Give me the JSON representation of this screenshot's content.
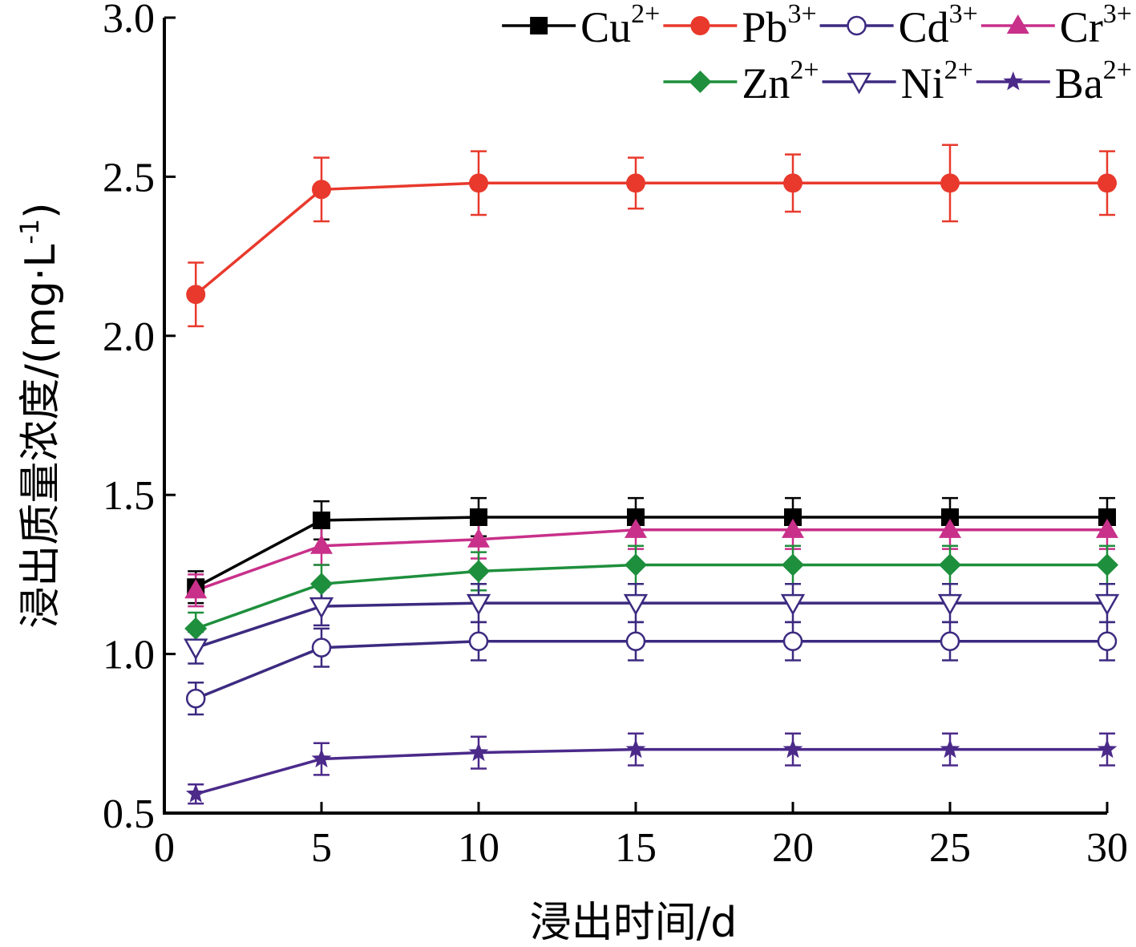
{
  "chart_data": {
    "type": "line",
    "title": "",
    "xlabel": "浸出时间/d",
    "ylabel": "浸出质量浓度/(mg·L-1)",
    "xlim": [
      0,
      30
    ],
    "ylim": [
      0.5,
      3.0
    ],
    "xticks": [
      "0",
      "5",
      "10",
      "15",
      "20",
      "25",
      "30"
    ],
    "yticks": [
      "0.5",
      "1.0",
      "1.5",
      "2.0",
      "2.5",
      "3.0"
    ],
    "grid": false,
    "legend_position": "top-right",
    "x": [
      1,
      5,
      10,
      15,
      20,
      25,
      30
    ],
    "series": [
      {
        "name": "Cu2+",
        "ion": "Cu",
        "charge": "2+",
        "color": "#000000",
        "marker": "square",
        "values": [
          1.21,
          1.42,
          1.43,
          1.43,
          1.43,
          1.43,
          1.43
        ],
        "errors": [
          0.05,
          0.06,
          0.06,
          0.06,
          0.06,
          0.06,
          0.06
        ]
      },
      {
        "name": "Pb3+",
        "ion": "Pb",
        "charge": "3+",
        "color": "#e8392c",
        "marker": "circle",
        "values": [
          2.13,
          2.46,
          2.48,
          2.48,
          2.48,
          2.48,
          2.48
        ],
        "errors": [
          0.1,
          0.1,
          0.1,
          0.08,
          0.09,
          0.12,
          0.1
        ]
      },
      {
        "name": "Cd3+",
        "ion": "Cd",
        "charge": "3+",
        "color": "#3c2a80",
        "marker": "open-circle",
        "values": [
          0.86,
          1.02,
          1.04,
          1.04,
          1.04,
          1.04,
          1.04
        ],
        "errors": [
          0.05,
          0.06,
          0.06,
          0.06,
          0.06,
          0.06,
          0.06
        ]
      },
      {
        "name": "Cr3+",
        "ion": "Cr",
        "charge": "3+",
        "color": "#c8308a",
        "marker": "triangle",
        "values": [
          1.2,
          1.34,
          1.36,
          1.39,
          1.39,
          1.39,
          1.39
        ],
        "errors": [
          0.05,
          0.06,
          0.06,
          0.06,
          0.06,
          0.06,
          0.06
        ]
      },
      {
        "name": "Zn2+",
        "ion": "Zn",
        "charge": "2+",
        "color": "#1e8f3c",
        "marker": "diamond",
        "values": [
          1.08,
          1.22,
          1.26,
          1.28,
          1.28,
          1.28,
          1.28
        ],
        "errors": [
          0.05,
          0.06,
          0.06,
          0.06,
          0.06,
          0.06,
          0.06
        ]
      },
      {
        "name": "Ni2+",
        "ion": "Ni",
        "charge": "2+",
        "color": "#3c2a80",
        "marker": "open-triangle-down",
        "values": [
          1.02,
          1.15,
          1.16,
          1.16,
          1.16,
          1.16,
          1.16
        ],
        "errors": [
          0.05,
          0.06,
          0.06,
          0.06,
          0.06,
          0.06,
          0.06
        ]
      },
      {
        "name": "Ba2+",
        "ion": "Ba",
        "charge": "2+",
        "color": "#4b2a8a",
        "marker": "star",
        "values": [
          0.56,
          0.67,
          0.69,
          0.7,
          0.7,
          0.7,
          0.7
        ],
        "errors": [
          0.03,
          0.05,
          0.05,
          0.05,
          0.05,
          0.05,
          0.05
        ]
      }
    ]
  }
}
